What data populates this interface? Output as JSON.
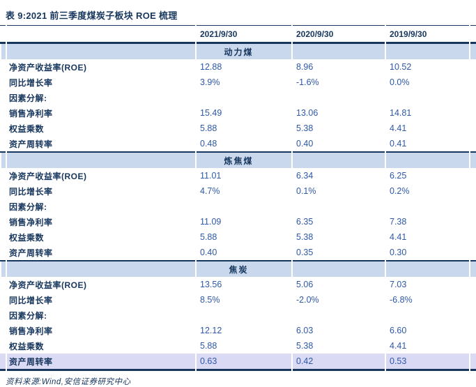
{
  "table": {
    "title": "表 9:2021 前三季度煤炭子板块 ROE 梳理",
    "columns": [
      "2021/9/30",
      "2020/9/30",
      "2019/9/30"
    ],
    "sections": [
      {
        "name": "动力煤",
        "rows": [
          {
            "label": "净资产收益率(ROE)",
            "values": [
              "12.88",
              "8.96",
              "10.52"
            ]
          },
          {
            "label": "同比增长率",
            "values": [
              "3.9%",
              "-1.6%",
              "0.0%"
            ]
          },
          {
            "label": "因素分解:",
            "values": [
              "",
              "",
              ""
            ]
          },
          {
            "label": "销售净利率",
            "values": [
              "15.49",
              "13.06",
              "14.81"
            ]
          },
          {
            "label": "权益乘数",
            "values": [
              "5.88",
              "5.38",
              "4.41"
            ]
          },
          {
            "label": "资产周转率",
            "values": [
              "0.48",
              "0.40",
              "0.41"
            ]
          }
        ]
      },
      {
        "name": "炼焦煤",
        "rows": [
          {
            "label": "净资产收益率(ROE)",
            "values": [
              "11.01",
              "6.34",
              "6.25"
            ]
          },
          {
            "label": "同比增长率",
            "values": [
              "4.7%",
              "0.1%",
              "0.2%"
            ]
          },
          {
            "label": "因素分解:",
            "values": [
              "",
              "",
              ""
            ]
          },
          {
            "label": "销售净利率",
            "values": [
              "11.09",
              "6.35",
              "7.38"
            ]
          },
          {
            "label": "权益乘数",
            "values": [
              "5.88",
              "5.38",
              "4.41"
            ]
          },
          {
            "label": "资产周转率",
            "values": [
              "0.40",
              "0.35",
              "0.30"
            ]
          }
        ]
      },
      {
        "name": "焦炭",
        "rows": [
          {
            "label": "净资产收益率(ROE)",
            "values": [
              "13.56",
              "5.06",
              "7.03"
            ]
          },
          {
            "label": "同比增长率",
            "values": [
              "8.5%",
              "-2.0%",
              "-6.8%"
            ]
          },
          {
            "label": "因素分解:",
            "values": [
              "",
              "",
              ""
            ]
          },
          {
            "label": "销售净利率",
            "values": [
              "12.12",
              "6.03",
              "6.60"
            ]
          },
          {
            "label": "权益乘数",
            "values": [
              "5.88",
              "5.38",
              "4.41"
            ]
          },
          {
            "label": "资产周转率",
            "values": [
              "0.63",
              "0.42",
              "0.53"
            ],
            "highlight": true
          }
        ]
      }
    ],
    "source": "资料来源:Wind,安信证券研究中心"
  },
  "colors": {
    "accent_navy": "#17365D",
    "value_blue": "#2E58A8",
    "section_band": "#C9D8ED",
    "highlight_row": "#DADAF4"
  }
}
